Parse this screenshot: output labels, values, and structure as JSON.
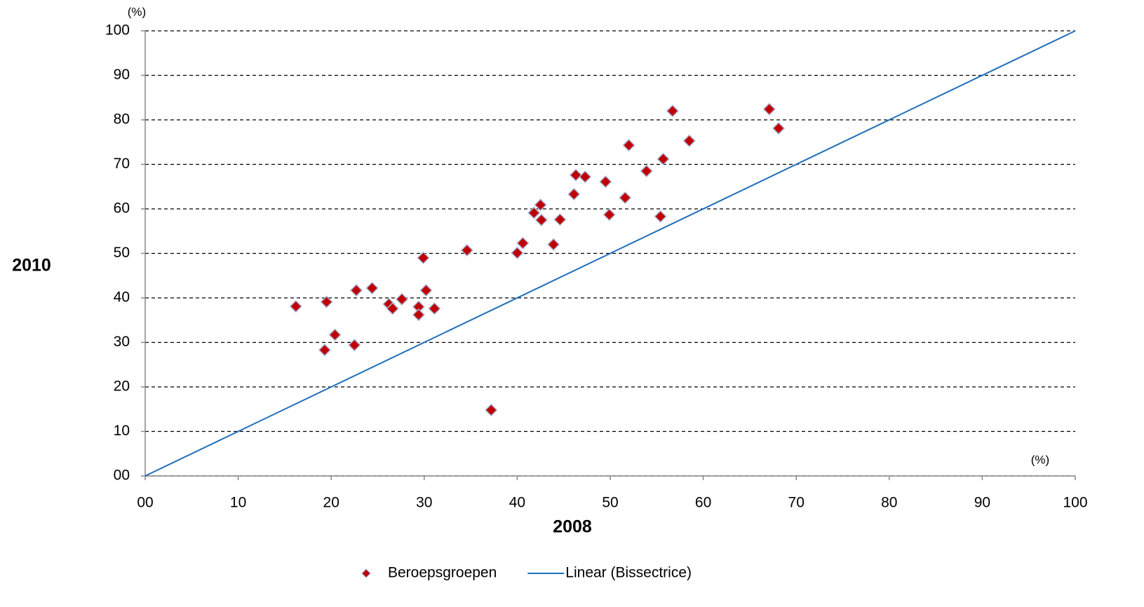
{
  "chart_data": {
    "type": "scatter",
    "xlabel": "2008",
    "ylabel": "2010",
    "x_unit": "(%)",
    "y_unit": "(%)",
    "xlim": [
      0,
      100
    ],
    "ylim": [
      0,
      100
    ],
    "xticks": [
      {
        "value": 0,
        "label": "00"
      },
      10,
      20,
      30,
      40,
      50,
      60,
      70,
      80,
      90,
      100
    ],
    "yticks": [
      {
        "value": 0,
        "label": "00"
      },
      10,
      20,
      30,
      40,
      50,
      60,
      70,
      80,
      90,
      100
    ],
    "grid": true,
    "legend": "bottom",
    "series": [
      {
        "name": "Beroepsgroepen",
        "type": "scatter",
        "color": "#c00000",
        "x": [
          16.2,
          19.5,
          19.3,
          20.4,
          22.5,
          22.7,
          24.4,
          26.2,
          26.6,
          27.6,
          29.4,
          29.4,
          29.9,
          30.2,
          31.1,
          34.6,
          37.2,
          40.0,
          40.6,
          41.8,
          42.5,
          42.6,
          43.9,
          44.6,
          46.1,
          46.3,
          47.3,
          49.5,
          49.9,
          51.6,
          52.0,
          53.9,
          55.4,
          55.7,
          56.7,
          58.5,
          67.1,
          68.1
        ],
        "values": [
          38.1,
          39.1,
          28.3,
          31.7,
          29.4,
          41.7,
          42.2,
          38.6,
          37.6,
          39.7,
          38.0,
          36.2,
          49.0,
          41.7,
          37.6,
          50.7,
          14.8,
          50.1,
          52.3,
          59.1,
          60.9,
          57.5,
          52.0,
          57.6,
          63.3,
          67.6,
          67.2,
          66.1,
          58.7,
          62.5,
          74.3,
          68.5,
          58.3,
          71.2,
          82.0,
          75.3,
          82.4,
          78.1
        ]
      },
      {
        "name": "Linear (Bissectrice)",
        "type": "line",
        "color": "#1f6fba",
        "x": [
          0,
          100
        ],
        "values": [
          0,
          100
        ]
      }
    ]
  }
}
